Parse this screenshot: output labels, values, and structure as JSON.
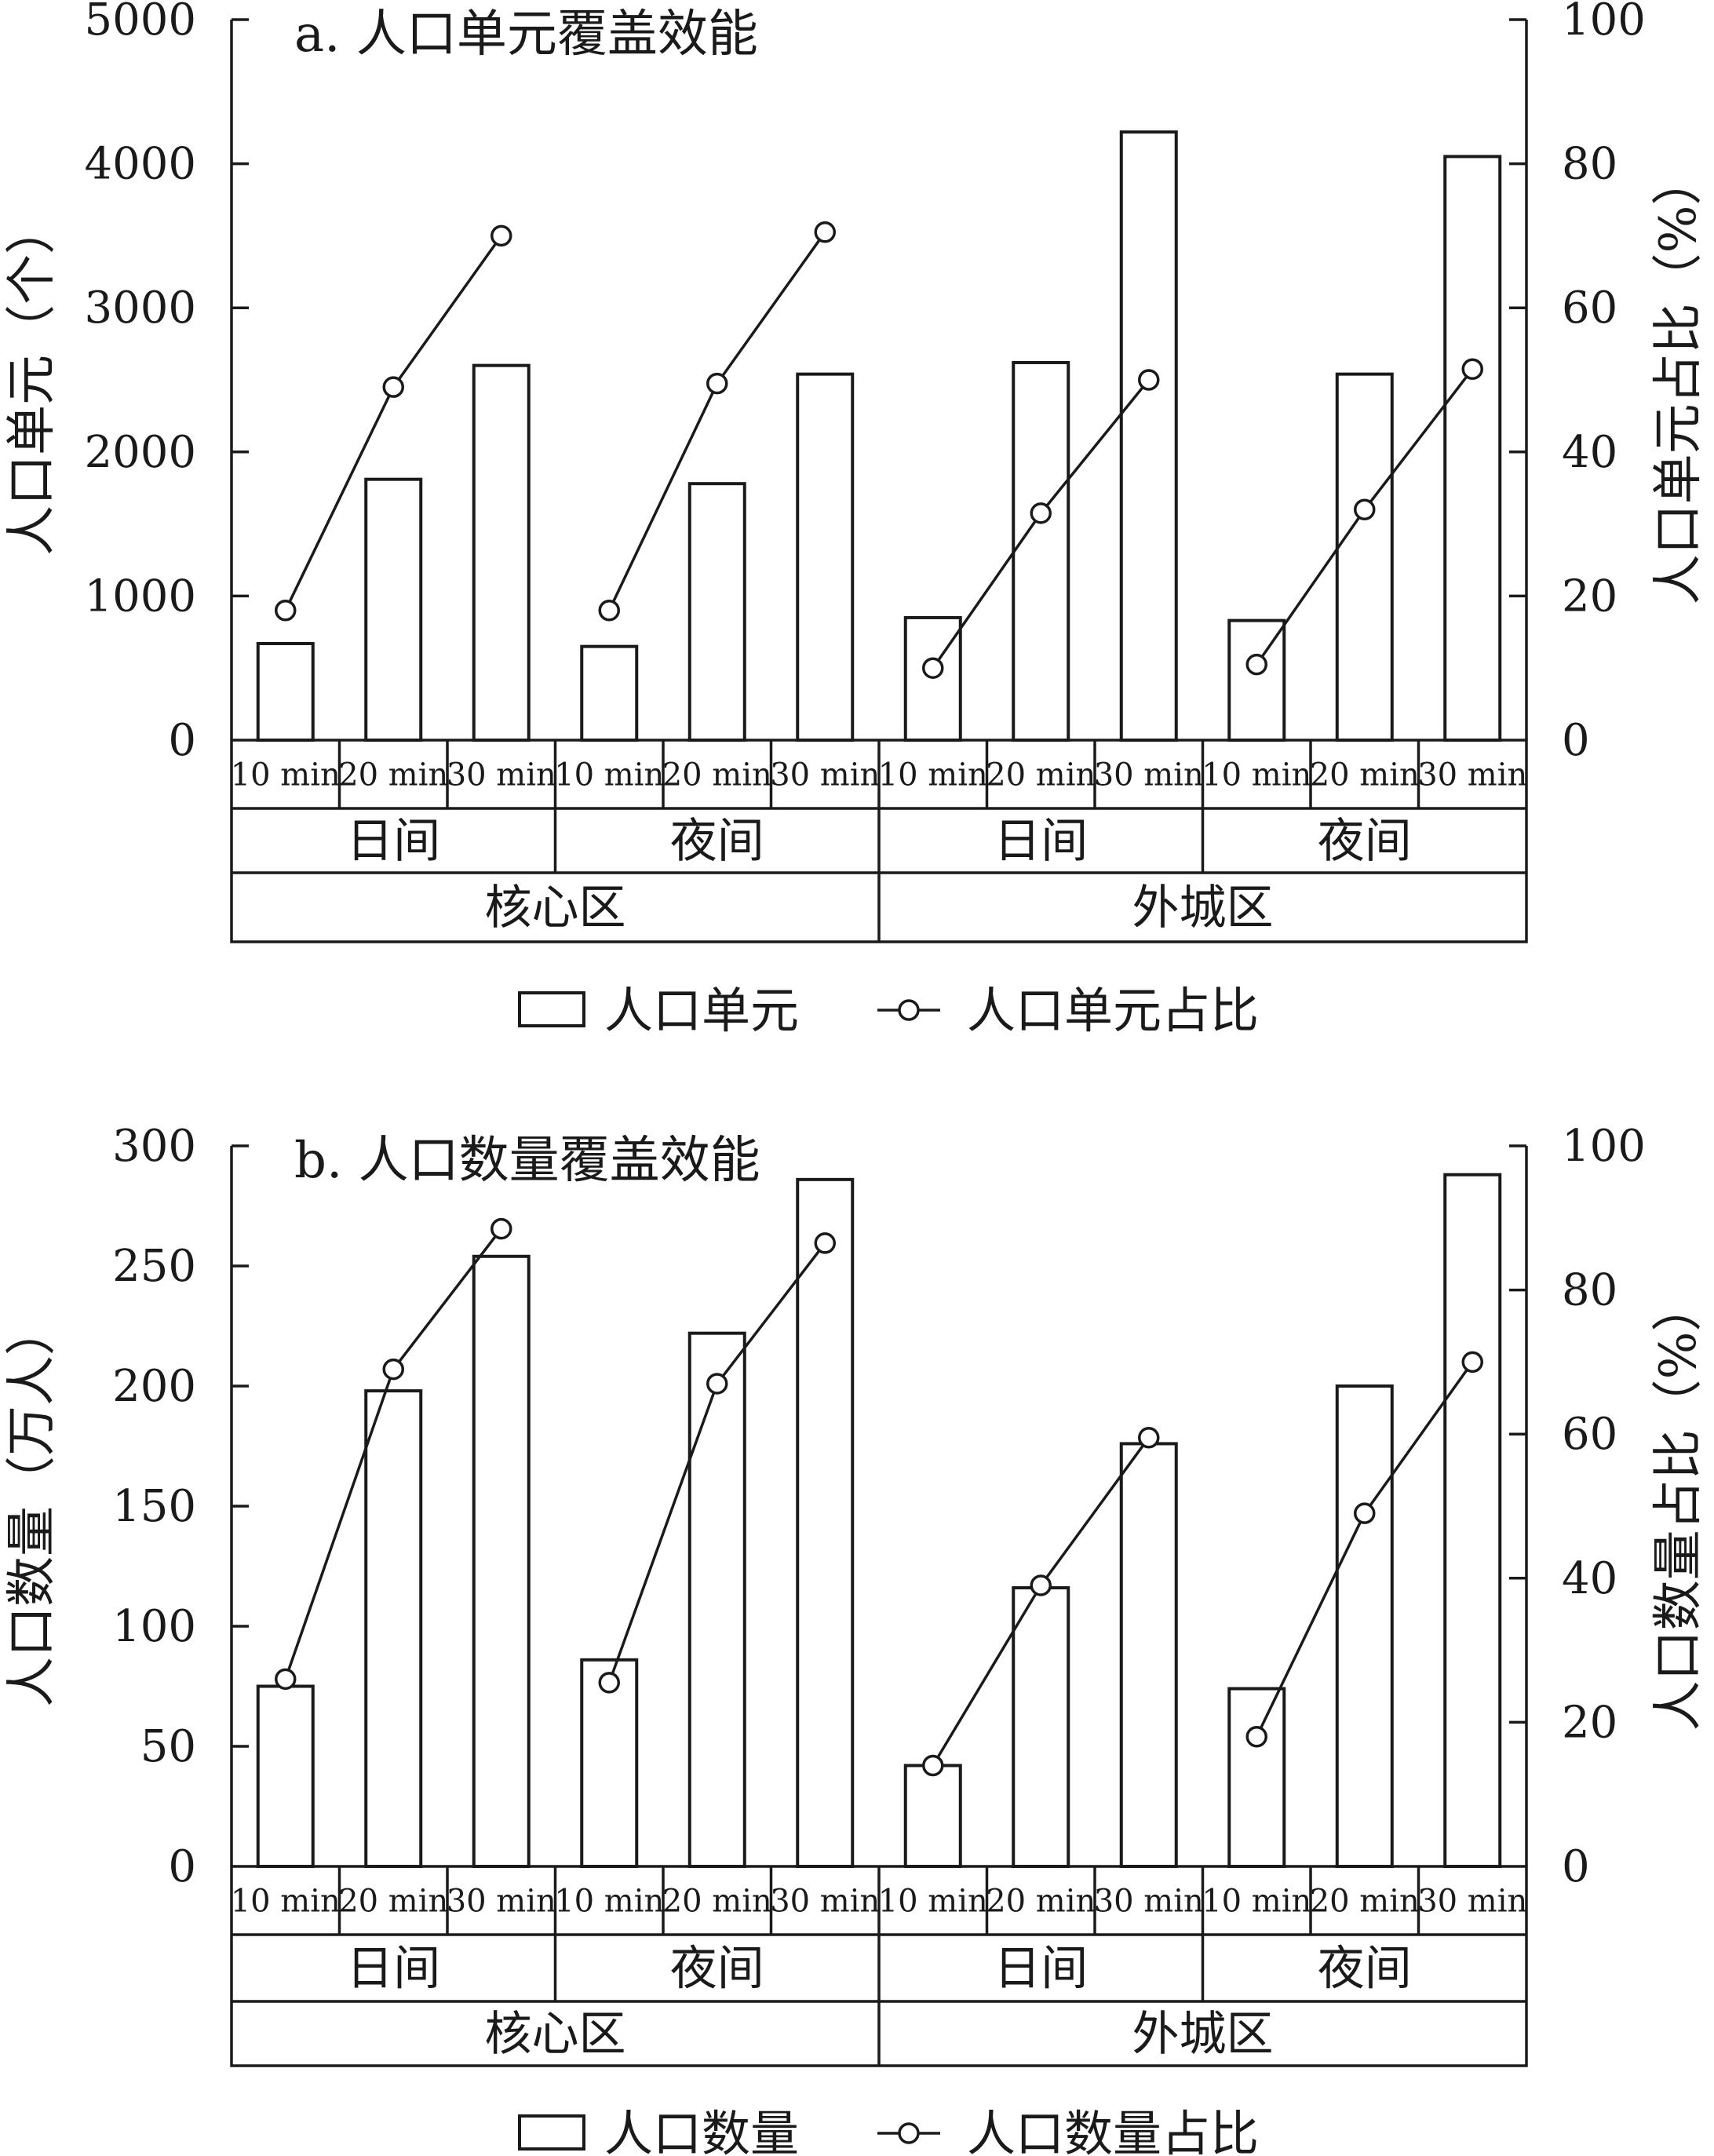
{
  "chart_data": [
    {
      "type": "bar",
      "title": "a. 人口单元覆盖效能",
      "ylabel": "人口单元（个）",
      "y2label": "人口单元占比（%）",
      "ylim": [
        0,
        5000
      ],
      "y2lim": [
        0,
        100
      ],
      "yticks": [
        "0",
        "1000",
        "2000",
        "3000",
        "4000",
        "5000"
      ],
      "y2ticks": [
        "0",
        "20",
        "40",
        "60",
        "80",
        "100"
      ],
      "categories": [
        "10 min",
        "20 min",
        "30 min",
        "10 min",
        "20 min",
        "30 min",
        "10 min",
        "20 min",
        "30 min",
        "10 min",
        "20 min",
        "30 min"
      ],
      "time_groups": [
        "日间",
        "夜间",
        "日间",
        "夜间"
      ],
      "area_groups": [
        "核心区",
        "外城区"
      ],
      "series": [
        {
          "name": "人口单元",
          "type": "bar",
          "axis": "left",
          "values": [
            670,
            1810,
            2600,
            650,
            1780,
            2540,
            850,
            2620,
            4220,
            830,
            2540,
            4050
          ]
        },
        {
          "name": "人口单元占比",
          "type": "line",
          "axis": "right",
          "values": [
            18,
            49,
            70,
            18,
            49.5,
            70.5,
            10,
            31.5,
            50,
            10.5,
            32,
            51.5
          ]
        }
      ],
      "legend": {
        "bar_label": "人口单元",
        "line_label": "人口单元占比",
        "position": "bottom"
      }
    },
    {
      "type": "bar",
      "title": "b. 人口数量覆盖效能",
      "ylabel": "人口数量（万人）",
      "y2label": "人口数量占比（%）",
      "ylim": [
        0,
        300
      ],
      "y2lim": [
        0,
        100
      ],
      "yticks": [
        "0",
        "50",
        "100",
        "150",
        "200",
        "250",
        "300"
      ],
      "y2ticks": [
        "0",
        "20",
        "40",
        "60",
        "80",
        "100"
      ],
      "categories": [
        "10 min",
        "20 min",
        "30 min",
        "10 min",
        "20 min",
        "30 min",
        "10 min",
        "20 min",
        "30 min",
        "10 min",
        "20 min",
        "30 min"
      ],
      "time_groups": [
        "日间",
        "夜间",
        "日间",
        "夜间"
      ],
      "area_groups": [
        "核心区",
        "外城区"
      ],
      "series": [
        {
          "name": "人口数量",
          "type": "bar",
          "axis": "left",
          "values": [
            75,
            198,
            254,
            86,
            222,
            286,
            42,
            116,
            176,
            74,
            200,
            288
          ]
        },
        {
          "name": "人口数量占比",
          "type": "line",
          "axis": "right",
          "values": [
            26,
            69,
            88.5,
            25.5,
            67,
            86.5,
            14,
            39,
            59.5,
            18,
            49,
            70
          ]
        }
      ],
      "legend": {
        "bar_label": "人口数量",
        "line_label": "人口数量占比",
        "position": "bottom"
      }
    }
  ]
}
